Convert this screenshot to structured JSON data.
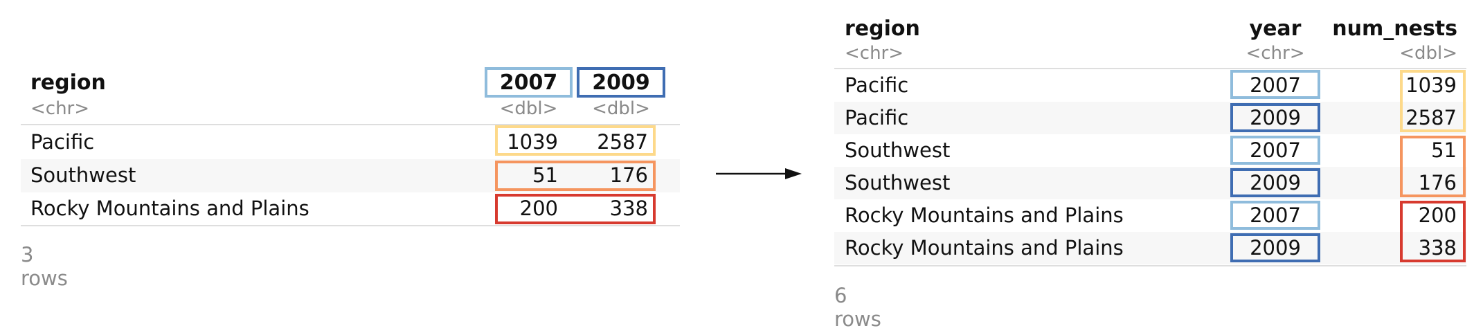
{
  "colors": {
    "year_2007": "#8fbcdc",
    "year_2009": "#3f6db2",
    "pacific": "#fdd98a",
    "southwest": "#f5955f",
    "rocky": "#d73a2f"
  },
  "wide": {
    "headers": {
      "region": "region",
      "y2007": "2007",
      "y2009": "2009"
    },
    "types": {
      "region": "<chr>",
      "y2007": "<dbl>",
      "y2009": "<dbl>"
    },
    "rows": [
      {
        "region": "Pacific",
        "y2007": "1039",
        "y2009": "2587"
      },
      {
        "region": "Southwest",
        "y2007": "51",
        "y2009": "176"
      },
      {
        "region": "Rocky Mountains and Plains",
        "y2007": "200",
        "y2009": "338"
      }
    ],
    "footer": "3 rows"
  },
  "long": {
    "headers": {
      "region": "region",
      "year": "year",
      "num_nests": "num_nests"
    },
    "types": {
      "region": "<chr>",
      "year": "<chr>",
      "num_nests": "<dbl>"
    },
    "rows": [
      {
        "region": "Pacific",
        "year": "2007",
        "num_nests": "1039"
      },
      {
        "region": "Pacific",
        "year": "2009",
        "num_nests": "2587"
      },
      {
        "region": "Southwest",
        "year": "2007",
        "num_nests": "51"
      },
      {
        "region": "Southwest",
        "year": "2009",
        "num_nests": "176"
      },
      {
        "region": "Rocky Mountains and Plains",
        "year": "2007",
        "num_nests": "200"
      },
      {
        "region": "Rocky Mountains and Plains",
        "year": "2009",
        "num_nests": "338"
      }
    ],
    "footer": "6 rows"
  },
  "arrow": {
    "icon": "right-arrow-icon"
  }
}
